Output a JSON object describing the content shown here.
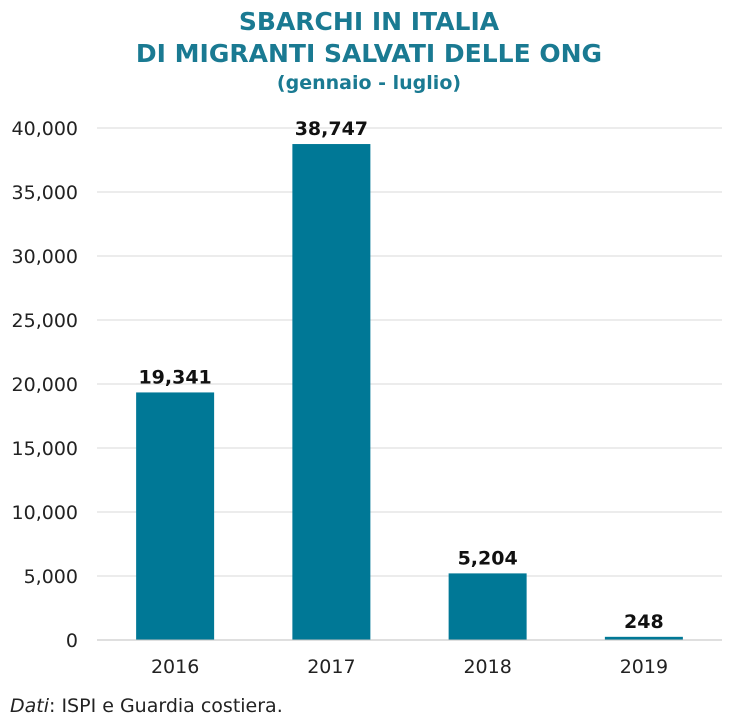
{
  "colors": {
    "title": "#1a7a92",
    "bar": "#007896",
    "grid": "#d9d9d9",
    "axis": "#bfbfbf",
    "text": "#222222"
  },
  "chart_data": {
    "type": "bar",
    "title": "SBARCHI IN ITALIA",
    "title_line2": "DI MIGRANTI SALVATI DELLE ONG",
    "subtitle": "(gennaio - luglio)",
    "categories": [
      "2016",
      "2017",
      "2018",
      "2019"
    ],
    "values": [
      19341,
      38747,
      5204,
      248
    ],
    "value_labels": [
      "19,341",
      "38,747",
      "5,204",
      "248"
    ],
    "ylim": [
      0,
      40000
    ],
    "yticks": [
      0,
      5000,
      10000,
      15000,
      20000,
      25000,
      30000,
      35000,
      40000
    ],
    "ytick_labels": [
      "0",
      "5,000",
      "10,000",
      "15,000",
      "20,000",
      "25,000",
      "30,000",
      "35,000",
      "40,000"
    ],
    "xlabel": "",
    "ylabel": "",
    "grid": true
  },
  "footer": {
    "source_label": "Dati",
    "source_text": ": ISPI e Guardia costiera."
  }
}
